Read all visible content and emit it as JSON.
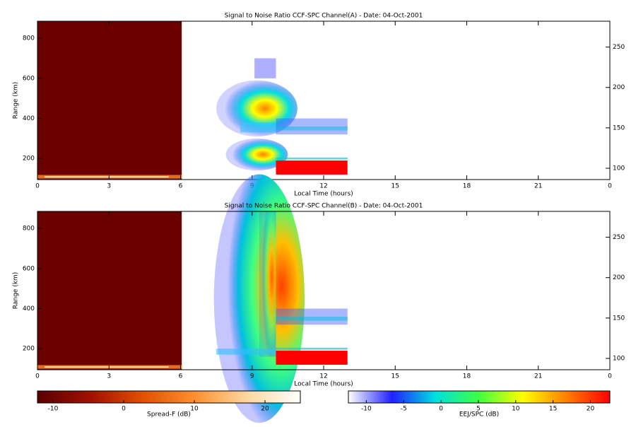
{
  "chart_data": [
    {
      "type": "heatmap",
      "title": "Signal to Noise Ratio CCF-SPC Channel(A) - Date: 04-Oct-2001",
      "xlabel": "Local Time (hours)",
      "ylabel": "Range (km)",
      "xlim": [
        0,
        24
      ],
      "xticks": [
        0,
        3,
        6,
        9,
        12,
        15,
        18,
        21,
        {
          "value": 24,
          "label": "0"
        }
      ],
      "ylim": [
        95,
        885
      ],
      "yticks": [
        200,
        400,
        600,
        800
      ],
      "y2lim": [
        86,
        282
      ],
      "y2ticks": [
        100,
        150,
        200,
        250
      ]
    },
    {
      "type": "heatmap",
      "title": "Signal to Noise Ratio CCF-SPC Channel(B) - Date: 04-Oct-2001",
      "xlabel": "Local Time (hours)",
      "ylabel": "Range (km)",
      "xlim": [
        0,
        24
      ],
      "xticks": [
        0,
        3,
        6,
        9,
        12,
        15,
        18,
        21,
        {
          "value": 24,
          "label": "0"
        }
      ],
      "ylim": [
        95,
        885
      ],
      "yticks": [
        200,
        400,
        600,
        800
      ],
      "y2lim": [
        86,
        282
      ],
      "y2ticks": [
        100,
        150,
        200,
        250
      ]
    }
  ],
  "colorbars": [
    {
      "label": "Spread-F (dB)",
      "lim": [
        -12.2,
        25
      ],
      "ticks": [
        -10,
        0,
        10,
        20
      ],
      "colors": [
        "#5a0000",
        "#a01000",
        "#e05000",
        "#ff9030",
        "#ffd8a0",
        "#ffffff"
      ]
    },
    {
      "label": "EEJ/SPC (dB)",
      "lim": [
        -12.4,
        22.6
      ],
      "ticks": [
        -10,
        -5,
        0,
        5,
        10,
        15,
        20
      ],
      "colors": [
        "#ffffff",
        "#2020ff",
        "#00e0e0",
        "#40ff40",
        "#ffff00",
        "#ff8000",
        "#ff0000"
      ]
    }
  ]
}
